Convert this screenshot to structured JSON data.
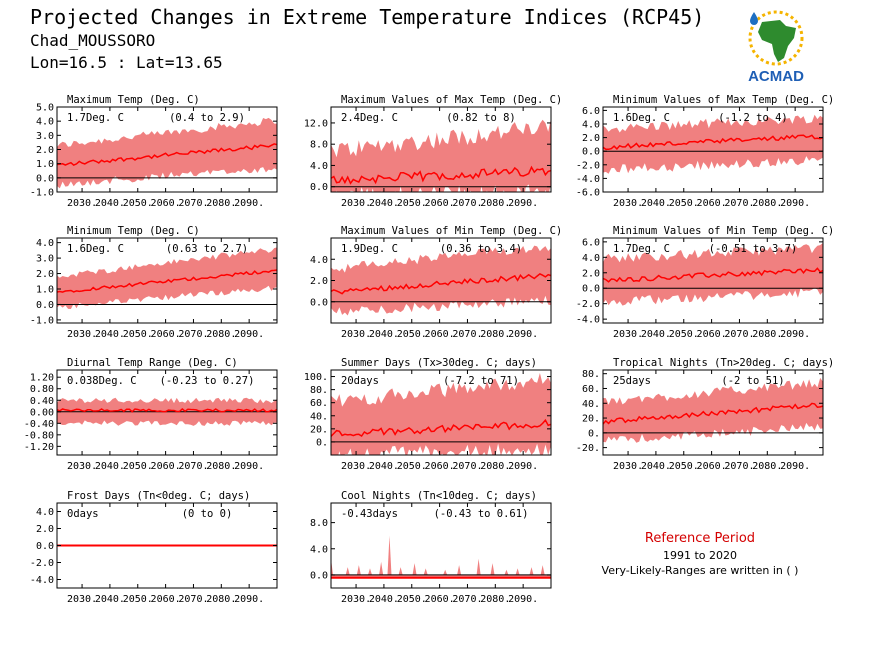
{
  "header": {
    "title": "Projected Changes in Extreme Temperature Indices (RCP45)",
    "station": "Chad_MOUSSORO",
    "coords": "Lon=16.5 : Lat=13.65"
  },
  "logo": {
    "text": "ACMAD",
    "colors": {
      "africa": "#2e8b2e",
      "sun": "#f5b400",
      "drop": "#1e6fc2",
      "text": "#1f5fb5"
    }
  },
  "reference": {
    "title": "Reference Period",
    "period": "1991 to 2020",
    "note": "Very-Likely-Ranges are written in ( )"
  },
  "colors": {
    "band": "#f08080",
    "line": "#ff0000",
    "zero": "#000000"
  },
  "chart_data": [
    {
      "type": "area",
      "title": "Maximum Temp (Deg. C)",
      "stat": "1.7Deg. C",
      "range": "(0.4 to 2.9)",
      "x": [
        2021,
        2100
      ],
      "ylim": [
        -1.0,
        5.0
      ],
      "yticks": [
        -1.0,
        0.0,
        1.0,
        2.0,
        3.0,
        4.0,
        5.0
      ],
      "yticklabels": [
        "-1.0",
        "0.0",
        "1.0",
        "2.0",
        "3.0",
        "4.0",
        "5.0"
      ],
      "xticks": [
        2030,
        2040,
        2050,
        2060,
        2070,
        2080,
        2090
      ],
      "xticklabels": [
        "2030.",
        "2040.",
        "2050.",
        "2060.",
        "2070.",
        "2080.",
        "2090."
      ],
      "median_trend": [
        0.9,
        2.3
      ],
      "band_lower_trend": [
        -0.2,
        1.0
      ],
      "band_upper_trend": [
        2.0,
        3.8
      ],
      "noise": 0.35
    },
    {
      "type": "area",
      "title": "Maximum Values of Max Temp (Deg. C)",
      "stat": "2.4Deg. C",
      "range": "(0.82 to 8)",
      "x": [
        2021,
        2100
      ],
      "ylim": [
        -1.0,
        15.0
      ],
      "yticks": [
        0.0,
        4.0,
        8.0,
        12.0
      ],
      "yticklabels": [
        "0.0",
        "4.0",
        "8.0",
        "12.0"
      ],
      "xticks": [
        2030,
        2040,
        2050,
        2060,
        2070,
        2080,
        2090
      ],
      "xticklabels": [
        "2030.",
        "2040.",
        "2050.",
        "2060.",
        "2070.",
        "2080.",
        "2090."
      ],
      "median_trend": [
        1.2,
        3.0
      ],
      "band_lower_trend": [
        0.0,
        0.5
      ],
      "band_upper_trend": [
        5.0,
        9.5
      ],
      "noise": 2.2
    },
    {
      "type": "area",
      "title": "Minimum Values of Max Temp (Deg. C)",
      "stat": "1.6Deg. C",
      "range": "(-1.2 to 4)",
      "x": [
        2021,
        2100
      ],
      "ylim": [
        -6.0,
        6.5
      ],
      "yticks": [
        -6.0,
        -4.0,
        -2.0,
        0.0,
        2.0,
        4.0,
        6.0
      ],
      "yticklabels": [
        "-6.0",
        "-4.0",
        "-2.0",
        "0.0",
        "2.0",
        "4.0",
        "6.0"
      ],
      "xticks": [
        2030,
        2040,
        2050,
        2060,
        2070,
        2080,
        2090
      ],
      "xticklabels": [
        "2030.",
        "2040.",
        "2050.",
        "2060.",
        "2070.",
        "2080.",
        "2090."
      ],
      "median_trend": [
        0.6,
        2.2
      ],
      "band_lower_trend": [
        -2.0,
        -0.6
      ],
      "band_upper_trend": [
        2.6,
        4.2
      ],
      "noise": 0.9
    },
    {
      "type": "area",
      "title": "Minimum Temp (Deg. C)",
      "stat": "1.6Deg. C",
      "range": "(0.63 to 2.7)",
      "x": [
        2021,
        2100
      ],
      "ylim": [
        -1.2,
        4.3
      ],
      "yticks": [
        -1.0,
        0.0,
        1.0,
        2.0,
        3.0,
        4.0
      ],
      "yticklabels": [
        "-1.0",
        "0.0",
        "1.0",
        "2.0",
        "3.0",
        "4.0"
      ],
      "xticks": [
        2030,
        2040,
        2050,
        2060,
        2070,
        2080,
        2090
      ],
      "xticklabels": [
        "2030.",
        "2040.",
        "2050.",
        "2060.",
        "2070.",
        "2080.",
        "2090."
      ],
      "median_trend": [
        0.8,
        2.2
      ],
      "band_lower_trend": [
        0.0,
        1.3
      ],
      "band_upper_trend": [
        1.6,
        3.4
      ],
      "noise": 0.25
    },
    {
      "type": "area",
      "title": "Maximum Values of Min Temp (Deg. C)",
      "stat": "1.9Deg. C",
      "range": "(0.36 to 3.4)",
      "x": [
        2021,
        2100
      ],
      "ylim": [
        -2.0,
        6.0
      ],
      "yticks": [
        0.0,
        2.0,
        4.0
      ],
      "yticklabels": [
        "0.0",
        "2.0",
        "4.0"
      ],
      "xticks": [
        2030,
        2040,
        2050,
        2060,
        2070,
        2080,
        2090
      ],
      "xticklabels": [
        "2030.",
        "2040.",
        "2050.",
        "2060.",
        "2070.",
        "2080.",
        "2090."
      ],
      "median_trend": [
        0.9,
        2.5
      ],
      "band_lower_trend": [
        -0.5,
        0.6
      ],
      "band_upper_trend": [
        2.6,
        4.8
      ],
      "noise": 0.6
    },
    {
      "type": "area",
      "title": "Minimum Values of Min Temp (Deg. C)",
      "stat": "1.7Deg. C",
      "range": "(-0.51 to 3.7)",
      "x": [
        2021,
        2100
      ],
      "ylim": [
        -4.5,
        6.5
      ],
      "yticks": [
        -4.0,
        -2.0,
        0.0,
        2.0,
        4.0,
        6.0
      ],
      "yticklabels": [
        "-4.0",
        "-2.0",
        "0.0",
        "2.0",
        "4.0",
        "6.0"
      ],
      "xticks": [
        2030,
        2040,
        2050,
        2060,
        2070,
        2080,
        2090
      ],
      "xticklabels": [
        "2030.",
        "2040.",
        "2050.",
        "2060.",
        "2070.",
        "2080.",
        "2090."
      ],
      "median_trend": [
        1.0,
        2.4
      ],
      "band_lower_trend": [
        -1.2,
        0.2
      ],
      "band_upper_trend": [
        3.2,
        4.6
      ],
      "noise": 0.8
    },
    {
      "type": "area",
      "title": "Diurnal Temp Range (Deg. C)",
      "stat": "0.038Deg. C",
      "range": "(-0.23 to 0.27)",
      "x": [
        2021,
        2100
      ],
      "ylim": [
        -1.5,
        1.45
      ],
      "yticks": [
        -1.2,
        -0.8,
        -0.4,
        0.0,
        0.4,
        0.8,
        1.2
      ],
      "yticklabels": [
        "-1.20",
        "-0.80",
        "-0.40",
        "0.00",
        "0.40",
        "0.80",
        "1.20"
      ],
      "xticks": [
        2030,
        2040,
        2050,
        2060,
        2070,
        2080,
        2090
      ],
      "xticklabels": [
        "2030.",
        "2040.",
        "2050.",
        "2060.",
        "2070.",
        "2080.",
        "2090."
      ],
      "median_trend": [
        0.05,
        0.05
      ],
      "band_lower_trend": [
        -0.3,
        -0.3
      ],
      "band_upper_trend": [
        0.3,
        0.3
      ],
      "noise": 0.12
    },
    {
      "type": "area",
      "title": "Summer Days (Tx>30deg. C; days)",
      "stat": "20days",
      "range": "(-7.2 to 71)",
      "x": [
        2021,
        2100
      ],
      "ylim": [
        -20,
        110
      ],
      "yticks": [
        0,
        20,
        40,
        60,
        80,
        100
      ],
      "yticklabels": [
        "0.",
        "20.",
        "40.",
        "60.",
        "80.",
        "100."
      ],
      "xticks": [
        2030,
        2040,
        2050,
        2060,
        2070,
        2080,
        2090
      ],
      "xticklabels": [
        "2030.",
        "2040.",
        "2050.",
        "2060.",
        "2070.",
        "2080.",
        "2090."
      ],
      "median_trend": [
        12,
        28
      ],
      "band_lower_trend": [
        -8,
        0
      ],
      "band_upper_trend": [
        50,
        85
      ],
      "noise": 14
    },
    {
      "type": "area",
      "title": "Tropical Nights (Tn>20deg. C; days)",
      "stat": "25days",
      "range": "(-2 to 51)",
      "x": [
        2021,
        2100
      ],
      "ylim": [
        -30,
        85
      ],
      "yticks": [
        -20,
        0,
        20,
        40,
        60,
        80
      ],
      "yticklabels": [
        "-20.",
        "0.",
        "20.",
        "40.",
        "60.",
        "80."
      ],
      "xticks": [
        2030,
        2040,
        2050,
        2060,
        2070,
        2080,
        2090
      ],
      "xticklabels": [
        "2030.",
        "2040.",
        "2050.",
        "2060.",
        "2070.",
        "2080.",
        "2090."
      ],
      "median_trend": [
        15,
        38
      ],
      "band_lower_trend": [
        -5,
        15
      ],
      "band_upper_trend": [
        35,
        62
      ],
      "noise": 8
    },
    {
      "type": "area",
      "title": "Frost Days (Tn<0deg. C; days)",
      "stat": "0days",
      "range": "(0 to 0)",
      "x": [
        2021,
        2100
      ],
      "ylim": [
        -5,
        5
      ],
      "yticks": [
        -4.0,
        -2.0,
        0.0,
        2.0,
        4.0
      ],
      "yticklabels": [
        "-4.0",
        "-2.0",
        "0.0",
        "2.0",
        "4.0"
      ],
      "xticks": [
        2030,
        2040,
        2050,
        2060,
        2070,
        2080,
        2090
      ],
      "xticklabels": [
        "2030.",
        "2040.",
        "2050.",
        "2060.",
        "2070.",
        "2080.",
        "2090."
      ],
      "median_trend": [
        0,
        0
      ],
      "band_lower_trend": [
        0,
        0
      ],
      "band_upper_trend": [
        0,
        0
      ],
      "noise": 0
    },
    {
      "type": "area",
      "title": "Cool Nights (Tn<10deg. C; days)",
      "stat": "-0.43days",
      "range": "(-0.43 to 0.61)",
      "x": [
        2021,
        2100
      ],
      "ylim": [
        -2,
        11
      ],
      "yticks": [
        0.0,
        4.0,
        8.0
      ],
      "yticklabels": [
        "0.0",
        "4.0",
        "8.0"
      ],
      "xticks": [
        2030,
        2040,
        2050,
        2060,
        2070,
        2080,
        2090
      ],
      "xticklabels": [
        "2030.",
        "2040.",
        "2050.",
        "2060.",
        "2070.",
        "2080.",
        "2090."
      ],
      "median_trend": [
        -0.43,
        -0.43
      ],
      "band_lower_trend": [
        -0.43,
        -0.43
      ],
      "band_upper_trend": [
        0.0,
        0.0
      ],
      "noise": 0,
      "spikes": [
        [
          2021,
          2.5
        ],
        [
          2027,
          1.2
        ],
        [
          2031,
          1.5
        ],
        [
          2035,
          1.0
        ],
        [
          2039,
          2.0
        ],
        [
          2042,
          6.0
        ],
        [
          2046,
          1.2
        ],
        [
          2051,
          1.8
        ],
        [
          2055,
          1.0
        ],
        [
          2062,
          0.8
        ],
        [
          2067,
          1.5
        ],
        [
          2074,
          2.5
        ],
        [
          2079,
          1.8
        ],
        [
          2084,
          0.8
        ],
        [
          2088,
          1.0
        ],
        [
          2093,
          1.2
        ],
        [
          2097,
          1.5
        ]
      ]
    }
  ]
}
